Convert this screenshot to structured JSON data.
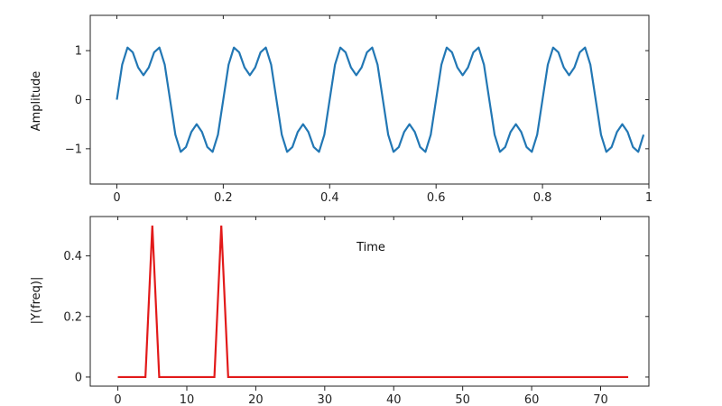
{
  "chart_data": [
    {
      "type": "line",
      "name": "time-domain",
      "xlabel": "Time",
      "ylabel": "Amplitude",
      "xlim": [
        -0.05,
        1.0
      ],
      "ylim": [
        -1.72,
        1.72
      ],
      "xticks": [
        0,
        0.2,
        0.4,
        0.6,
        0.8,
        1
      ],
      "xtick_labels": [
        "0",
        "0.2",
        "0.4",
        "0.6",
        "0.8",
        "1"
      ],
      "yticks": [
        1,
        0,
        -1
      ],
      "ytick_labels": [
        "1",
        "0",
        "−1"
      ],
      "color": "#2277b4",
      "series": [
        {
          "function": "sin(2*pi*5*t) + 0.5*sin(2*pi*15*t)",
          "t_start": 0,
          "t_end": 0.99,
          "t_step": 0.01
        }
      ]
    },
    {
      "type": "line",
      "name": "frequency-spectrum",
      "xlabel": "",
      "ylabel": "|Y(freq)|",
      "xlim": [
        -4,
        77
      ],
      "ylim": [
        -0.03,
        0.53
      ],
      "xticks": [
        0,
        10,
        20,
        30,
        40,
        50,
        60,
        70
      ],
      "xtick_labels": [
        "0",
        "10",
        "20",
        "30",
        "40",
        "50",
        "60",
        "70"
      ],
      "yticks": [
        0,
        0.2,
        0.4
      ],
      "ytick_labels": [
        "0",
        "0.2",
        "0.4"
      ],
      "color": "#e21a1a",
      "series": [
        {
          "x": [
            0,
            4,
            5,
            6,
            14,
            15,
            16,
            74
          ],
          "y": [
            0,
            0,
            0.5,
            0,
            0,
            0.5,
            0,
            0
          ]
        }
      ]
    }
  ]
}
